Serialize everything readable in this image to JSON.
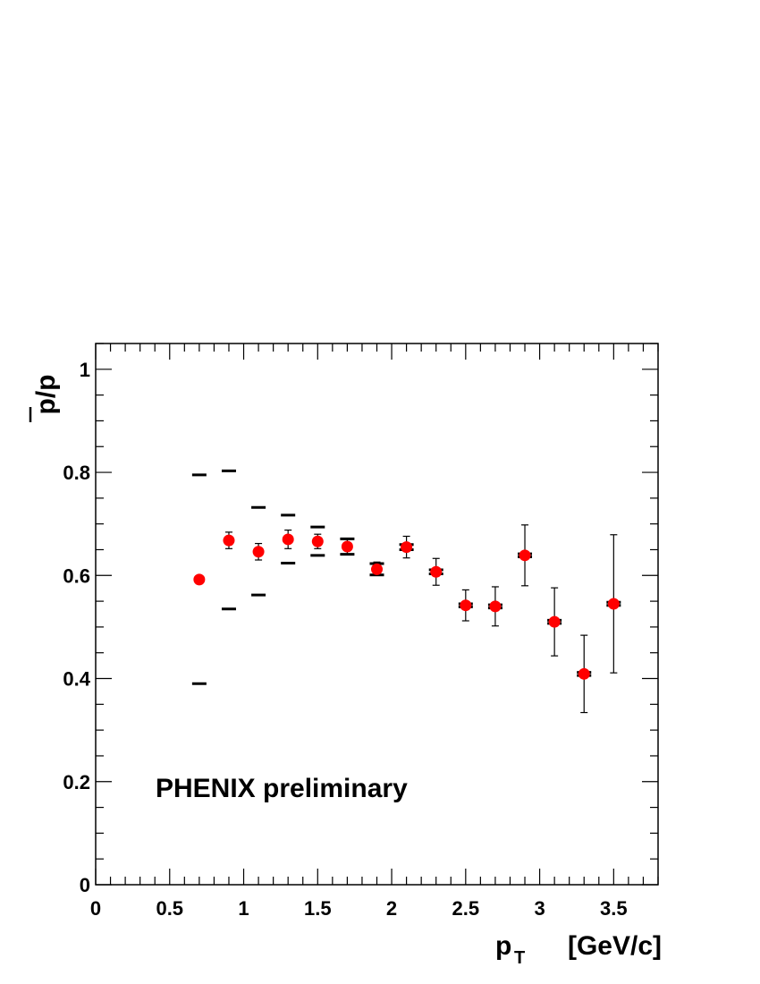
{
  "chart_data": {
    "type": "scatter",
    "xlabel_main": "p",
    "xlabel_sub": "T",
    "xlabel_unit": "[GeV/c]",
    "ylabel": "p/p",
    "annotation": "PHENIX preliminary",
    "xlim": [
      0,
      3.8
    ],
    "ylim": [
      0,
      1.05
    ],
    "xticks": [
      {
        "value": 0,
        "label": "0"
      },
      {
        "value": 0.5,
        "label": "0.5"
      },
      {
        "value": 1,
        "label": "1"
      },
      {
        "value": 1.5,
        "label": "1.5"
      },
      {
        "value": 2,
        "label": "2"
      },
      {
        "value": 2.5,
        "label": "2.5"
      },
      {
        "value": 3,
        "label": "3"
      },
      {
        "value": 3.5,
        "label": "3.5"
      }
    ],
    "yticks": [
      {
        "value": 0,
        "label": "0"
      },
      {
        "value": 0.2,
        "label": "0.2"
      },
      {
        "value": 0.4,
        "label": "0.4"
      },
      {
        "value": 0.6,
        "label": "0.6"
      },
      {
        "value": 0.8,
        "label": "0.8"
      },
      {
        "value": 1,
        "label": "1"
      }
    ],
    "grid": false,
    "marker_color": "#ff0000",
    "series": [
      {
        "points": [
          {
            "x": 0.7,
            "y": 0.592,
            "stat_err": [
              0.592,
              0.592
            ],
            "sys_err": [
              0.39,
              0.795
            ]
          },
          {
            "x": 0.9,
            "y": 0.668,
            "stat_err": [
              0.652,
              0.684
            ],
            "sys_err": [
              0.535,
              0.803
            ]
          },
          {
            "x": 1.1,
            "y": 0.646,
            "stat_err": [
              0.63,
              0.662
            ],
            "sys_err": [
              0.562,
              0.732
            ]
          },
          {
            "x": 1.3,
            "y": 0.67,
            "stat_err": [
              0.652,
              0.688
            ],
            "sys_err": [
              0.624,
              0.717
            ]
          },
          {
            "x": 1.5,
            "y": 0.666,
            "stat_err": [
              0.652,
              0.68
            ],
            "sys_err": [
              0.639,
              0.694
            ]
          },
          {
            "x": 1.7,
            "y": 0.656,
            "stat_err": [
              0.642,
              0.67
            ],
            "sys_err": [
              0.641,
              0.671
            ]
          },
          {
            "x": 1.9,
            "y": 0.612,
            "stat_err": [
              0.6,
              0.626
            ],
            "sys_err": [
              0.601,
              0.623
            ]
          },
          {
            "x": 2.1,
            "y": 0.655,
            "stat_err": [
              0.634,
              0.676
            ],
            "sys_err": [
              0.65,
              0.66
            ]
          },
          {
            "x": 2.3,
            "y": 0.607,
            "stat_err": [
              0.581,
              0.633
            ],
            "sys_err": [
              0.603,
              0.611
            ]
          },
          {
            "x": 2.5,
            "y": 0.542,
            "stat_err": [
              0.512,
              0.572
            ],
            "sys_err": [
              0.539,
              0.545
            ]
          },
          {
            "x": 2.7,
            "y": 0.54,
            "stat_err": [
              0.502,
              0.578
            ],
            "sys_err": [
              0.537,
              0.543
            ]
          },
          {
            "x": 2.9,
            "y": 0.639,
            "stat_err": [
              0.58,
              0.698
            ],
            "sys_err": [
              0.636,
              0.642
            ]
          },
          {
            "x": 3.1,
            "y": 0.51,
            "stat_err": [
              0.444,
              0.576
            ],
            "sys_err": [
              0.507,
              0.513
            ]
          },
          {
            "x": 3.3,
            "y": 0.409,
            "stat_err": [
              0.334,
              0.484
            ],
            "sys_err": [
              0.406,
              0.412
            ]
          },
          {
            "x": 3.5,
            "y": 0.545,
            "stat_err": [
              0.411,
              0.679
            ],
            "sys_err": [
              0.542,
              0.548
            ]
          }
        ]
      }
    ]
  }
}
